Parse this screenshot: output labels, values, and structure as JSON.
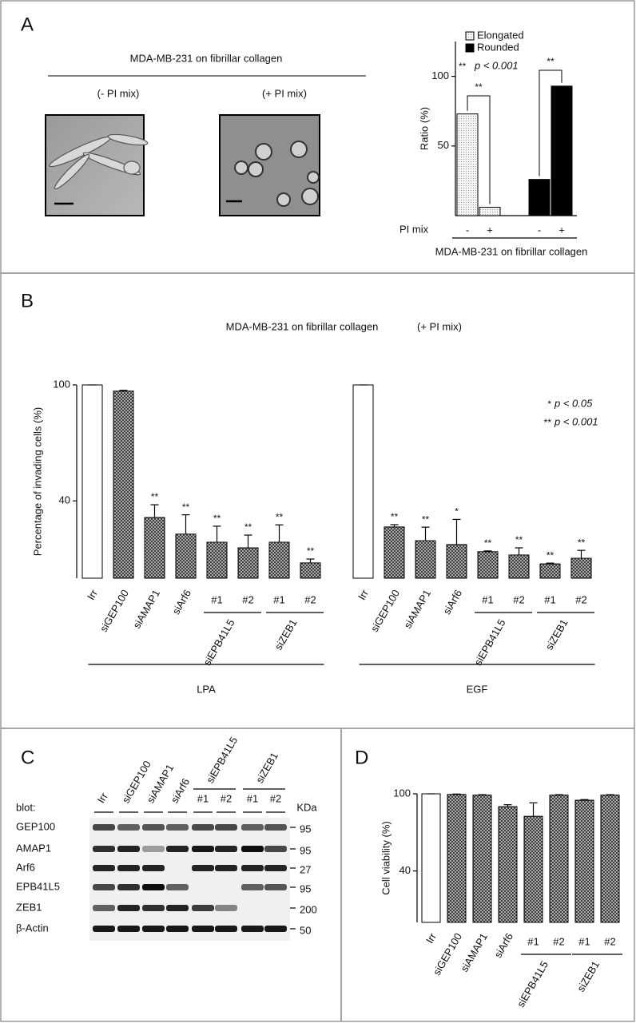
{
  "panel_labels": [
    "A",
    "B",
    "C",
    "D"
  ],
  "micrographs": {
    "title": "MDA-MB-231 on fibrillar collagen",
    "conditions": [
      "(- PI mix)",
      "(+ PI mix)"
    ]
  },
  "blot": {
    "label": "blot:",
    "unit": "KDa",
    "lanes": [
      "Irr",
      "siGEP100",
      "siAMAP1",
      "siArf6",
      "#1",
      "#2",
      "#1",
      "#2"
    ],
    "lane_groups": [
      "siEPB41L5",
      "siZEB1"
    ],
    "rows": [
      {
        "protein": "GEP100",
        "kda": 95
      },
      {
        "protein": "AMAP1",
        "kda": 95
      },
      {
        "protein": "Arf6",
        "kda": 27
      },
      {
        "protein": "EPB41L5",
        "kda": 95
      },
      {
        "protein": "ZEB1",
        "kda": 200
      },
      {
        "protein": "β-Actin",
        "kda": 50
      }
    ]
  },
  "chart_data": [
    {
      "type": "bar",
      "ylabel": "Ratio (%)",
      "ylim": [
        0,
        125
      ],
      "yticks": [
        50,
        100
      ],
      "categories": [
        "-",
        "+",
        "-",
        "+"
      ],
      "x_label": "PI mix",
      "footnote": "MDA-MB-231 on fibrillar collagen",
      "series": [
        {
          "name": "Elongated",
          "color": "#e6e6e6",
          "values": [
            73,
            6,
            null,
            null
          ]
        },
        {
          "name": "Rounded",
          "color": "#000000",
          "values": [
            null,
            null,
            26,
            93
          ]
        }
      ],
      "significance": [
        "**",
        "**"
      ],
      "note": {
        "stars": "**",
        "text": "p < 0.001"
      }
    },
    {
      "type": "bar",
      "title": "MDA-MB-231 on fibrillar collagen",
      "subtitle": "(+ PI mix)",
      "ylabel": "Percentage of invading cells (%)",
      "ylim": [
        0,
        100
      ],
      "yticks": [
        40,
        100
      ],
      "categories": [
        "Irr",
        "siGEP100",
        "siAMAP1",
        "siArf6",
        "#1",
        "#2",
        "#1",
        "#2",
        "Irr",
        "siGEP100",
        "siAMAP1",
        "siArf6",
        "#1",
        "#2",
        "#1",
        "#2"
      ],
      "values": [
        100,
        96.8,
        31.4,
        22.8,
        18.6,
        15.7,
        18.6,
        7.9,
        100,
        26.5,
        19.4,
        17.4,
        13.7,
        12,
        7.4,
        10.3
      ],
      "errors": [
        0,
        0.4,
        6.6,
        10,
        8.3,
        6.6,
        9,
        2,
        0,
        1.2,
        7,
        13,
        0.4,
        3.7,
        0.4,
        4.1
      ],
      "significance": [
        null,
        null,
        "**",
        "**",
        "**",
        "**",
        "**",
        "**",
        null,
        "**",
        "**",
        "*",
        "**",
        "**",
        "**",
        "**"
      ],
      "subgroups": [
        "siEPB41L5",
        "siZEB1",
        "siEPB41L5",
        "siZEB1"
      ],
      "groups": [
        "LPA",
        "EGF"
      ],
      "notes": [
        {
          "stars": "*",
          "text": "p < 0.05"
        },
        {
          "stars": "**",
          "text": "p < 0.001"
        }
      ]
    },
    {
      "type": "bar",
      "ylabel": "Cell viability (%)",
      "ylim": [
        0,
        100
      ],
      "yticks": [
        40,
        100
      ],
      "categories": [
        "Irr",
        "siGEP100",
        "siAMAP1",
        "siArf6",
        "#1",
        "#2",
        "#1",
        "#2"
      ],
      "values": [
        100,
        99.5,
        99,
        90,
        82.5,
        99,
        95,
        99
      ],
      "errors": [
        0,
        0.3,
        0.3,
        1.5,
        10.5,
        0.3,
        0.5,
        0.3
      ],
      "subgroups": [
        "siEPB41L5",
        "siZEB1"
      ]
    }
  ]
}
